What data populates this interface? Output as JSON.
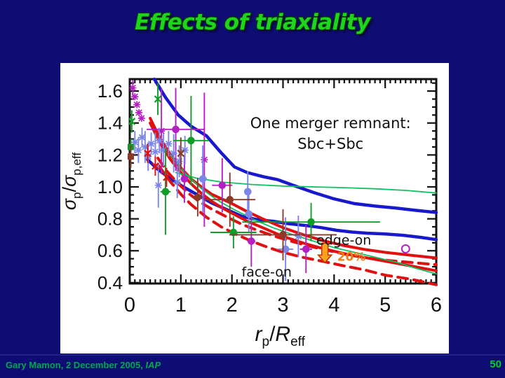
{
  "slide": {
    "title": "Effects of triaxiality"
  },
  "footer": {
    "credit_prefix": "Gary Mamon, 2 December 2005, ",
    "credit_italic": "IAP",
    "page": "50"
  },
  "chart_data": {
    "type": "line+scatter",
    "title": "",
    "xlim": [
      0,
      6
    ],
    "ylim": [
      0.395,
      1.675
    ],
    "grid": false,
    "frame_color": "#111111",
    "x_ticks": {
      "major": [
        0,
        1,
        2,
        3,
        4,
        5,
        6
      ],
      "labels": [
        "0",
        "1",
        "2",
        "3",
        "4",
        "5",
        "6"
      ],
      "minor_step": 0.1
    },
    "y_ticks": {
      "major": [
        0.4,
        0.6,
        0.8,
        1.0,
        1.2,
        1.4,
        1.6
      ],
      "labels": [
        "0.4",
        "0.6",
        "0.8",
        "1.0",
        "1.2",
        "1.4",
        "1.6"
      ],
      "minor_step": 0.05
    },
    "xlabel": {
      "var1": "r",
      "sub1": "p",
      "sep": "/",
      "var2": "R",
      "sub2": "eff"
    },
    "ylabel": {
      "var1": "σ",
      "sub1": "p",
      "sep": "/",
      "var2": "σ",
      "sub2": "p,eff"
    },
    "curves": [
      {
        "id": "blue-upper",
        "color": "#1818cc",
        "width": 4.5,
        "dash": "",
        "pts": [
          [
            0.48,
            1.675
          ],
          [
            0.7,
            1.56
          ],
          [
            0.95,
            1.45
          ],
          [
            1.2,
            1.38
          ],
          [
            1.5,
            1.32
          ],
          [
            1.8,
            1.21
          ],
          [
            2.05,
            1.125
          ],
          [
            2.3,
            1.09
          ],
          [
            2.6,
            1.065
          ],
          [
            2.9,
            1.045
          ],
          [
            3.2,
            1.01
          ],
          [
            3.6,
            0.965
          ],
          [
            4.0,
            0.925
          ],
          [
            4.4,
            0.895
          ],
          [
            4.8,
            0.88
          ],
          [
            5.2,
            0.868
          ],
          [
            5.6,
            0.853
          ],
          [
            6.0,
            0.84
          ]
        ]
      },
      {
        "id": "blue-lower",
        "color": "#1818cc",
        "width": 4.5,
        "dash": "",
        "pts": [
          [
            0.35,
            1.17
          ],
          [
            0.55,
            1.11
          ],
          [
            0.8,
            1.05
          ],
          [
            1.05,
            1.0
          ],
          [
            1.3,
            0.955
          ],
          [
            1.6,
            0.9
          ],
          [
            1.9,
            0.858
          ],
          [
            2.2,
            0.815
          ],
          [
            2.5,
            0.795
          ],
          [
            2.8,
            0.785
          ],
          [
            3.1,
            0.77
          ],
          [
            3.45,
            0.758
          ],
          [
            3.75,
            0.745
          ],
          [
            4.05,
            0.728
          ],
          [
            4.35,
            0.717
          ],
          [
            4.65,
            0.71
          ],
          [
            5.0,
            0.705
          ],
          [
            5.35,
            0.697
          ],
          [
            5.7,
            0.684
          ],
          [
            6.0,
            0.67
          ]
        ]
      },
      {
        "id": "red-solid-upper-edge-on",
        "color": "#e01010",
        "width": 4,
        "dash": "",
        "pts": [
          [
            0.4,
            1.43
          ],
          [
            0.55,
            1.33
          ],
          [
            0.7,
            1.25
          ],
          [
            0.85,
            1.18
          ],
          [
            1.0,
            1.12
          ],
          [
            1.2,
            1.05
          ],
          [
            1.4,
            1.0
          ],
          [
            1.6,
            0.955
          ],
          [
            1.8,
            0.925
          ],
          [
            2.0,
            0.895
          ],
          [
            2.3,
            0.845
          ],
          [
            2.6,
            0.8
          ],
          [
            3.0,
            0.745
          ],
          [
            3.4,
            0.7
          ],
          [
            3.8,
            0.662
          ],
          [
            4.2,
            0.632
          ],
          [
            4.6,
            0.608
          ],
          [
            5.0,
            0.59
          ],
          [
            5.5,
            0.572
          ],
          [
            6.0,
            0.555
          ]
        ]
      },
      {
        "id": "red-solid-lower-edge-on",
        "color": "#e01010",
        "width": 4,
        "dash": "",
        "pts": [
          [
            0.4,
            1.4
          ],
          [
            0.6,
            1.27
          ],
          [
            0.8,
            1.17
          ],
          [
            1.0,
            1.09
          ],
          [
            1.2,
            1.02
          ],
          [
            1.4,
            0.96
          ],
          [
            1.6,
            0.91
          ],
          [
            1.8,
            0.87
          ],
          [
            2.0,
            0.835
          ],
          [
            2.3,
            0.785
          ],
          [
            2.6,
            0.745
          ],
          [
            3.0,
            0.69
          ],
          [
            3.4,
            0.648
          ],
          [
            3.8,
            0.612
          ],
          [
            4.2,
            0.582
          ],
          [
            4.6,
            0.558
          ],
          [
            5.0,
            0.535
          ],
          [
            5.5,
            0.505
          ],
          [
            6.0,
            0.475
          ]
        ]
      },
      {
        "id": "red-dashed-upper-face-on",
        "color": "#e01010",
        "width": 4,
        "dash": "14 9",
        "pts": [
          [
            0.55,
            1.18
          ],
          [
            0.75,
            1.09
          ],
          [
            0.95,
            1.02
          ],
          [
            1.15,
            0.96
          ],
          [
            1.35,
            0.91
          ],
          [
            1.6,
            0.862
          ],
          [
            1.9,
            0.812
          ],
          [
            2.2,
            0.765
          ],
          [
            2.5,
            0.728
          ],
          [
            2.8,
            0.695
          ],
          [
            3.1,
            0.665
          ],
          [
            3.5,
            0.63
          ],
          [
            3.9,
            0.6
          ],
          [
            4.3,
            0.573
          ],
          [
            4.7,
            0.553
          ],
          [
            5.1,
            0.538
          ],
          [
            5.5,
            0.527
          ],
          [
            6.0,
            0.513
          ]
        ]
      },
      {
        "id": "red-dashed-lower-face-on",
        "color": "#e01010",
        "width": 4,
        "dash": "14 9",
        "pts": [
          [
            0.55,
            1.14
          ],
          [
            0.8,
            1.03
          ],
          [
            1.0,
            0.955
          ],
          [
            1.2,
            0.89
          ],
          [
            1.5,
            0.81
          ],
          [
            1.8,
            0.748
          ],
          [
            2.1,
            0.7
          ],
          [
            2.4,
            0.658
          ],
          [
            2.7,
            0.622
          ],
          [
            3.0,
            0.59
          ],
          [
            3.4,
            0.558
          ],
          [
            3.8,
            0.532
          ],
          [
            4.2,
            0.505
          ],
          [
            4.6,
            0.48
          ],
          [
            5.0,
            0.447
          ],
          [
            5.5,
            0.422
          ],
          [
            6.0,
            0.387
          ]
        ]
      },
      {
        "id": "green-flat",
        "color": "#0ec060",
        "width": 1.8,
        "dash": "",
        "pts": [
          [
            0.9,
            1.09
          ],
          [
            1.3,
            1.055
          ],
          [
            1.8,
            1.03
          ],
          [
            2.4,
            1.015
          ],
          [
            3.0,
            1.005
          ],
          [
            3.6,
            1.0
          ],
          [
            4.2,
            0.995
          ],
          [
            4.8,
            0.988
          ],
          [
            5.4,
            0.978
          ],
          [
            6.0,
            0.962
          ]
        ]
      },
      {
        "id": "green-declining",
        "color": "#0ec060",
        "width": 1.8,
        "dash": "",
        "pts": [
          [
            0.8,
            1.2
          ],
          [
            1.1,
            1.08
          ],
          [
            1.4,
            0.99
          ],
          [
            1.7,
            0.92
          ],
          [
            2.0,
            0.865
          ],
          [
            2.4,
            0.8
          ],
          [
            2.8,
            0.745
          ],
          [
            3.2,
            0.7
          ],
          [
            3.6,
            0.66
          ],
          [
            4.0,
            0.62
          ],
          [
            4.4,
            0.59
          ],
          [
            4.8,
            0.56
          ],
          [
            5.2,
            0.53
          ],
          [
            5.6,
            0.49
          ],
          [
            6.0,
            0.455
          ]
        ]
      }
    ],
    "points": [
      {
        "c": "#b520c0",
        "m": "ast",
        "x": 0.06,
        "y": 1.62,
        "ey": 0.05
      },
      {
        "c": "#b520c0",
        "m": "ast",
        "x": 0.1,
        "y": 1.565
      },
      {
        "c": "#b520c0",
        "m": "ast",
        "x": 0.14,
        "y": 1.515
      },
      {
        "c": "#b520c0",
        "m": "ast",
        "x": 0.18,
        "y": 1.465
      },
      {
        "c": "#b520c0",
        "m": "ast",
        "x": 0.23,
        "y": 1.43
      },
      {
        "c": "#b520c0",
        "m": "ast",
        "x": 0.62,
        "y": 1.35,
        "ey": 0.27
      },
      {
        "c": "#b520c0",
        "m": "ast",
        "x": 1.46,
        "y": 1.17,
        "ey": 0.42
      },
      {
        "c": "#b520c0",
        "m": "dot",
        "x": 0.9,
        "y": 1.36,
        "ex": 0.57,
        "ey": 0.26
      },
      {
        "c": "#b520c0",
        "m": "dot",
        "x": 1.07,
        "y": 1.05,
        "ey": 0.15
      },
      {
        "c": "#b520c0",
        "m": "dot",
        "x": 1.81,
        "y": 1.01,
        "ex": 0.2,
        "ey": 0.17
      },
      {
        "c": "#b520c0",
        "m": "dot",
        "x": 2.38,
        "y": 0.66,
        "ex": 0.08,
        "ey": 0.16
      },
      {
        "c": "#b520c0",
        "m": "dot",
        "x": 3.45,
        "y": 0.61,
        "ex": 0.12,
        "ey": 0.15
      },
      {
        "c": "#b520c0",
        "m": "odot",
        "x": 5.4,
        "y": 0.612
      },
      {
        "c": "#7b86e6",
        "m": "ast",
        "x": 0.1,
        "y": 1.28,
        "ey": 0.07
      },
      {
        "c": "#7b86e6",
        "m": "ast",
        "x": 0.17,
        "y": 1.23,
        "ey": 0.08
      },
      {
        "c": "#7b86e6",
        "m": "ast",
        "x": 0.24,
        "y": 1.31,
        "ey": 0.06
      },
      {
        "c": "#7b86e6",
        "m": "ast",
        "x": 0.3,
        "y": 1.25,
        "ey": 0.1
      },
      {
        "c": "#7b86e6",
        "m": "ast",
        "x": 0.36,
        "y": 1.19,
        "ey": 0.09
      },
      {
        "c": "#7b86e6",
        "m": "ast",
        "x": 0.42,
        "y": 1.27,
        "ey": 0.07
      },
      {
        "c": "#7b86e6",
        "m": "ast",
        "x": 0.5,
        "y": 1.22,
        "ey": 0.12
      },
      {
        "c": "#7b86e6",
        "m": "ast",
        "x": 0.58,
        "y": 1.29,
        "ey": 0.08
      },
      {
        "c": "#7b86e6",
        "m": "ast",
        "x": 0.66,
        "y": 1.23,
        "ey": 0.1
      },
      {
        "c": "#7b86e6",
        "m": "ast",
        "x": 0.76,
        "y": 1.27,
        "ey": 0.08
      },
      {
        "c": "#7b86e6",
        "m": "ast",
        "x": 0.86,
        "y": 1.21,
        "ey": 0.12
      },
      {
        "c": "#7b86e6",
        "m": "ast",
        "x": 0.97,
        "y": 1.16,
        "ey": 0.1
      },
      {
        "c": "#7b86e6",
        "m": "ast",
        "x": 1.08,
        "y": 1.23,
        "ey": 0.09
      },
      {
        "c": "#7b86e6",
        "m": "ast",
        "x": 0.56,
        "y": 1.01,
        "ey": 0.14
      },
      {
        "c": "#7b86e6",
        "m": "ast",
        "x": 0.93,
        "y": 1.03,
        "ey": 0.1
      },
      {
        "c": "#7b86e6",
        "m": "ast",
        "x": 3.3,
        "y": 0.69,
        "ey": 0.13
      },
      {
        "c": "#7b86e6",
        "m": "dot",
        "x": 1.43,
        "y": 1.05,
        "ex": 0.08,
        "ey": 0.21
      },
      {
        "c": "#7b86e6",
        "m": "dot",
        "x": 2.31,
        "y": 0.97,
        "ey": 0.13
      },
      {
        "c": "#7b86e6",
        "m": "dot",
        "x": 2.33,
        "y": 0.83,
        "ey": 0.12
      },
      {
        "c": "#7b86e6",
        "m": "dot",
        "x": 3.05,
        "y": 0.61,
        "ex": 0.15,
        "ey": 0.2
      },
      {
        "c": "#109c28",
        "m": "x",
        "x": 0.55,
        "y": 1.55,
        "ey": 0.1
      },
      {
        "c": "#109c28",
        "m": "x",
        "x": 0.04,
        "y": 1.41,
        "ey": 0.07
      },
      {
        "c": "#109c28",
        "m": "sq",
        "x": 0.02,
        "y": 1.25,
        "ey": 0.05
      },
      {
        "c": "#109c28",
        "m": "dot",
        "x": 1.2,
        "y": 1.29,
        "ex": 0.35,
        "ey": 0.28
      },
      {
        "c": "#109c28",
        "m": "dot",
        "x": 0.7,
        "y": 0.97,
        "ex": 0.1,
        "ey": 0.27
      },
      {
        "c": "#109c28",
        "m": "dot",
        "x": 2.03,
        "y": 0.715,
        "ex": 0.45,
        "ey": 0.1
      },
      {
        "c": "#109c28",
        "m": "dot",
        "x": 3.55,
        "y": 0.78,
        "ex": 1.35,
        "ey": 0.12
      },
      {
        "c": "#8b3a28",
        "m": "x",
        "x": 1.0,
        "y": 1.21,
        "ey": 0.1
      },
      {
        "c": "#8b3a28",
        "m": "sq",
        "x": 0.02,
        "y": 1.19,
        "ey": 0.07
      },
      {
        "c": "#8b3a28",
        "m": "dot",
        "x": 1.33,
        "y": 0.935,
        "ex": 0.1,
        "ey": 0.12
      },
      {
        "c": "#8b3a28",
        "m": "dot",
        "x": 1.96,
        "y": 0.92,
        "ex": 0.5,
        "ey": 0.17
      },
      {
        "c": "#8b3a28",
        "m": "dot",
        "x": 3.0,
        "y": 0.7,
        "ex": 1.05,
        "ey": 0.16
      },
      {
        "c": "#e01010",
        "m": "x",
        "x": 0.35,
        "y": 1.21,
        "ey": 0.06
      },
      {
        "c": "#e01010",
        "m": "x",
        "x": 0.5,
        "y": 1.13,
        "ey": 0.06
      },
      {
        "c": "#e01010",
        "m": "x",
        "x": 0.72,
        "y": 1.06,
        "ey": 0.06
      }
    ],
    "annotations": [
      {
        "id": "merger-remnant-line1",
        "text": "One merger remnant:",
        "x": 3.93,
        "y": 1.4,
        "size": 21,
        "color": "#111111",
        "anchor": "middle"
      },
      {
        "id": "merger-remnant-line2",
        "text": "Sbc+Sbc",
        "x": 3.93,
        "y": 1.27,
        "size": 21,
        "color": "#111111",
        "anchor": "middle"
      },
      {
        "id": "edge-on-label",
        "text": "edge-on",
        "x": 4.19,
        "y": 0.668,
        "size": 19,
        "color": "#111111",
        "anchor": "middle"
      },
      {
        "id": "face-on-label",
        "text": "face-on",
        "x": 2.68,
        "y": 0.468,
        "size": 19,
        "color": "#111111",
        "anchor": "middle"
      },
      {
        "id": "pct-20-label",
        "text": "20%",
        "x": 4.06,
        "y": 0.563,
        "size": 17,
        "color": "#f07d10",
        "anchor": "start"
      }
    ],
    "arrow": {
      "x": 3.82,
      "y_from": 0.648,
      "y_to": 0.525,
      "fill": "#ffa21e",
      "stroke": "#c03a00"
    }
  }
}
